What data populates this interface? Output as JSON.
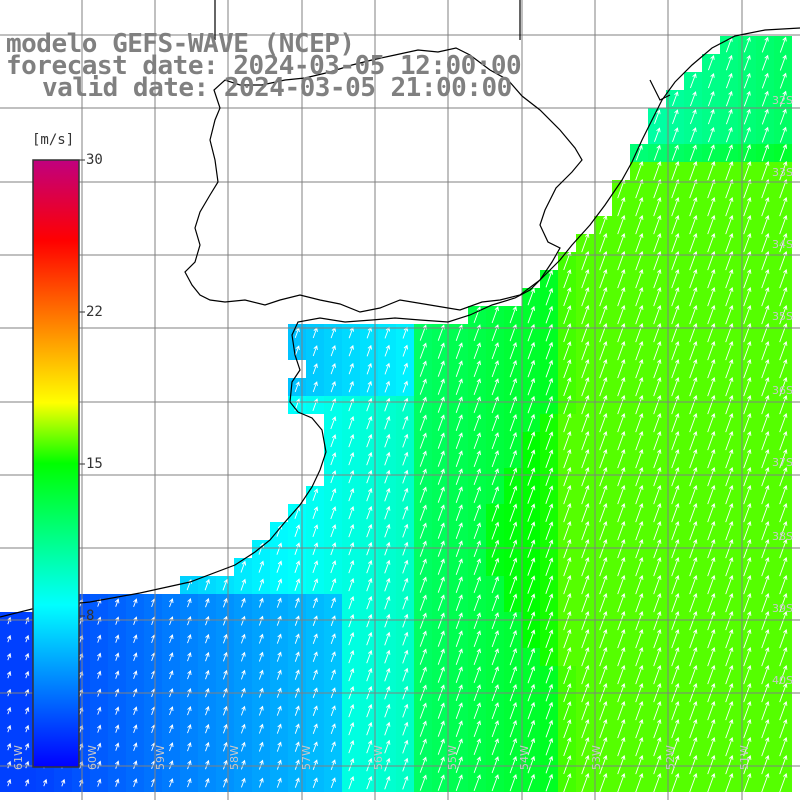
{
  "title": {
    "line1": "modelo GEFS-WAVE (NCEP)",
    "line2": "forecast date: 2024-03-05 12:00:00",
    "line3": "valid date: 2024-03-05 21:00:00"
  },
  "colorbar": {
    "unit": "[m/s]",
    "ticks": [
      "30",
      "22",
      "15",
      "8"
    ],
    "vmin": 0,
    "vmax": 30,
    "stops": [
      {
        "value": 0,
        "color": "#0000ff"
      },
      {
        "value": 8,
        "color": "#00ffff"
      },
      {
        "value": 15,
        "color": "#00ff00"
      },
      {
        "value": 18,
        "color": "#ffff00"
      },
      {
        "value": 22,
        "color": "#ff8000"
      },
      {
        "value": 26,
        "color": "#ff0000"
      },
      {
        "value": 30,
        "color": "#c0007f"
      }
    ]
  },
  "lon_labels": [
    "61W",
    "60W",
    "59W",
    "58W",
    "57W",
    "56W",
    "55W",
    "54W",
    "53W",
    "52W",
    "51W"
  ],
  "lat_labels": [
    "32S",
    "33S",
    "34S",
    "35S",
    "36S",
    "37S",
    "38S",
    "39S",
    "40S"
  ],
  "colors": {
    "ocean_low": "#0050ff",
    "ocean_mid": "#00e8ff",
    "ocean_high": "#30f030",
    "land": "#ffffff",
    "coastline": "#000000",
    "grid": "#808080",
    "arrow": "#ffffff"
  },
  "wind_direction": "towards north-east"
}
